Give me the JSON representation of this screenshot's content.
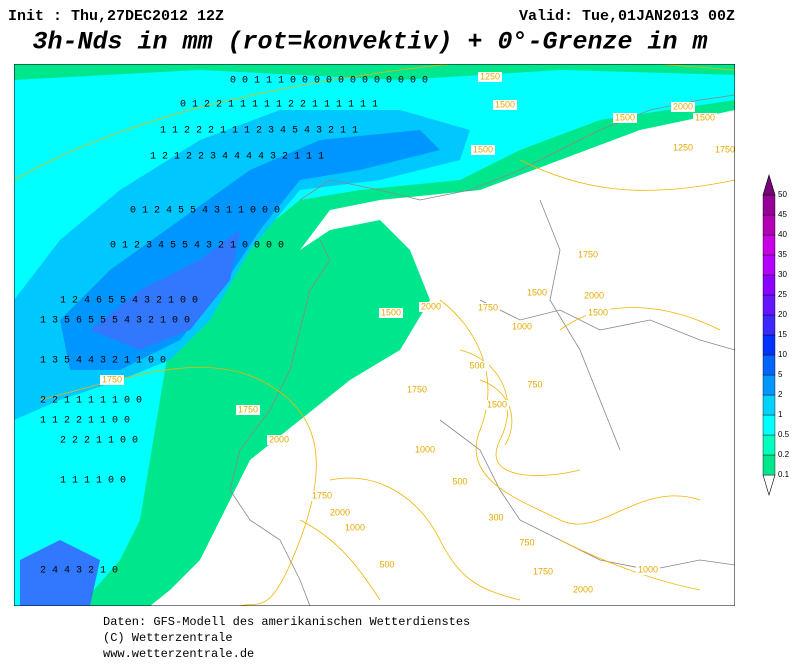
{
  "header": {
    "init": "Init : Thu,27DEC2012 12Z",
    "valid": "Valid: Tue,01JAN2013 00Z",
    "title": "3h-Nds in mm (rot=konvektiv) + 0°-Grenze in m"
  },
  "legend": {
    "levels": [
      0.1,
      0.2,
      0.5,
      1,
      2,
      5,
      10,
      15,
      20,
      25,
      30,
      35,
      40,
      45,
      50
    ],
    "colors": [
      "#00e68c",
      "#00ffbe",
      "#00ffff",
      "#00d2ff",
      "#0096ff",
      "#0064ff",
      "#0032ff",
      "#3c28ff",
      "#6414ff",
      "#8c00ff",
      "#b400ff",
      "#c800e6",
      "#b400b4",
      "#960096",
      "#780078"
    ]
  },
  "contour_labels": [
    "1250",
    "1500",
    "1500",
    "2000",
    "1500",
    "1250",
    "1500",
    "1750",
    "1750",
    "1500",
    "2000",
    "1500",
    "1500",
    "1750",
    "2000",
    "1750",
    "1750",
    "2000",
    "1500",
    "1000",
    "500",
    "750",
    "300",
    "500",
    "1000",
    "1750",
    "2000",
    "1750",
    "1000",
    "500",
    "750",
    "1750",
    "2000",
    "1000"
  ],
  "precip_rows": [
    "0 0 1 1 1 0 0 0 0 0 0 0 0 0 0 0 0",
    "0 1 2 2 1 1 1 1 1 2 2 1 1 1 1 1 1",
    "1 1 2 2 2 1 1 1 2 3 4 5 4 3 2 1 1",
    "1 2 1 2 2 3 4 4 4 4 3 2 1 1 1",
    "0 1 2 4 5 5 4 3 1 1 0 0 0",
    "0 1 2 3 4 5 5 4 3 2 1 0 0 0 0",
    "1 2 4 6 5 5 4 3 2 1 0 0",
    "1 3 5 6 5 5 5 4 3 2 1 0 0",
    "1 3 5 4 4 3 2 1 1 0 0",
    "2 2 1 1 1 1 1 0 0",
    "1 1 2 2 1 1 0 0",
    "2 2 2 1 1 0 0",
    "1 1 1 1 0 0",
    "2 4 4 3 2 1 0"
  ],
  "footer": {
    "line1": "Daten: GFS-Modell des amerikanischen Wetterdienstes",
    "line2": "(C) Wetterzentrale",
    "line3": "www.wetterzentrale.de"
  }
}
